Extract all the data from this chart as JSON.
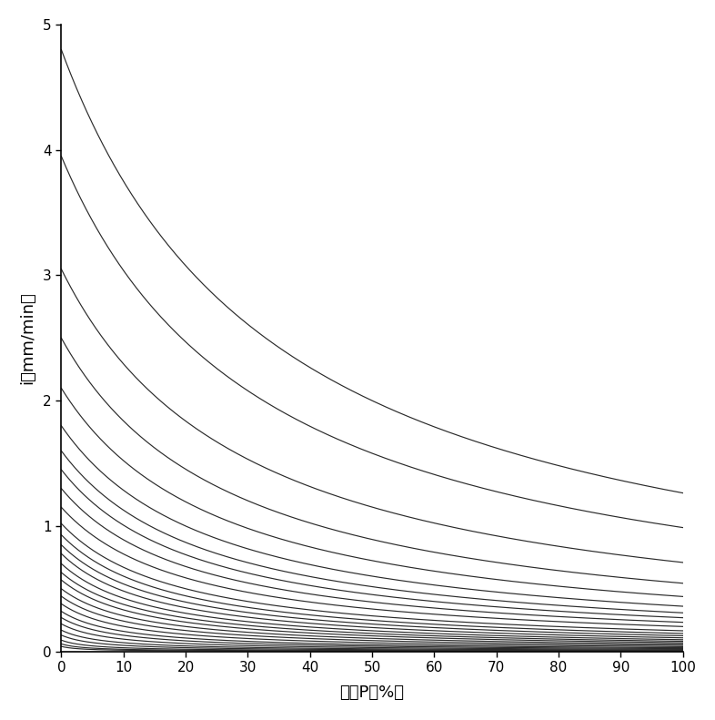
{
  "xlabel": "频率P（%）",
  "ylabel": "i（mm/min）",
  "xlim": [
    0,
    100
  ],
  "ylim": [
    0,
    5
  ],
  "xticks": [
    0,
    10,
    20,
    30,
    40,
    50,
    60,
    70,
    80,
    90,
    100
  ],
  "yticks": [
    0,
    1,
    2,
    3,
    4,
    5
  ],
  "background_color": "#ffffff",
  "line_color": "#2a2a2a",
  "curves": [
    {
      "a": 4.8,
      "c": 0.028
    },
    {
      "a": 3.95,
      "c": 0.03
    },
    {
      "a": 3.05,
      "c": 0.033
    },
    {
      "a": 2.5,
      "c": 0.036
    },
    {
      "a": 2.1,
      "c": 0.038
    },
    {
      "a": 1.8,
      "c": 0.04
    },
    {
      "a": 1.6,
      "c": 0.042
    },
    {
      "a": 1.45,
      "c": 0.044
    },
    {
      "a": 1.3,
      "c": 0.046
    },
    {
      "a": 1.15,
      "c": 0.048
    },
    {
      "a": 1.02,
      "c": 0.052
    },
    {
      "a": 0.93,
      "c": 0.055
    },
    {
      "a": 0.85,
      "c": 0.058
    },
    {
      "a": 0.78,
      "c": 0.062
    },
    {
      "a": 0.7,
      "c": 0.065
    },
    {
      "a": 0.63,
      "c": 0.068
    },
    {
      "a": 0.57,
      "c": 0.072
    },
    {
      "a": 0.5,
      "c": 0.076
    },
    {
      "a": 0.44,
      "c": 0.082
    },
    {
      "a": 0.38,
      "c": 0.09
    },
    {
      "a": 0.32,
      "c": 0.1
    },
    {
      "a": 0.27,
      "c": 0.11
    },
    {
      "a": 0.22,
      "c": 0.125
    },
    {
      "a": 0.17,
      "c": 0.145
    },
    {
      "a": 0.13,
      "c": 0.17
    },
    {
      "a": 0.09,
      "c": 0.21
    },
    {
      "a": 0.06,
      "c": 0.26
    },
    {
      "a": 0.04,
      "c": 0.32
    }
  ]
}
